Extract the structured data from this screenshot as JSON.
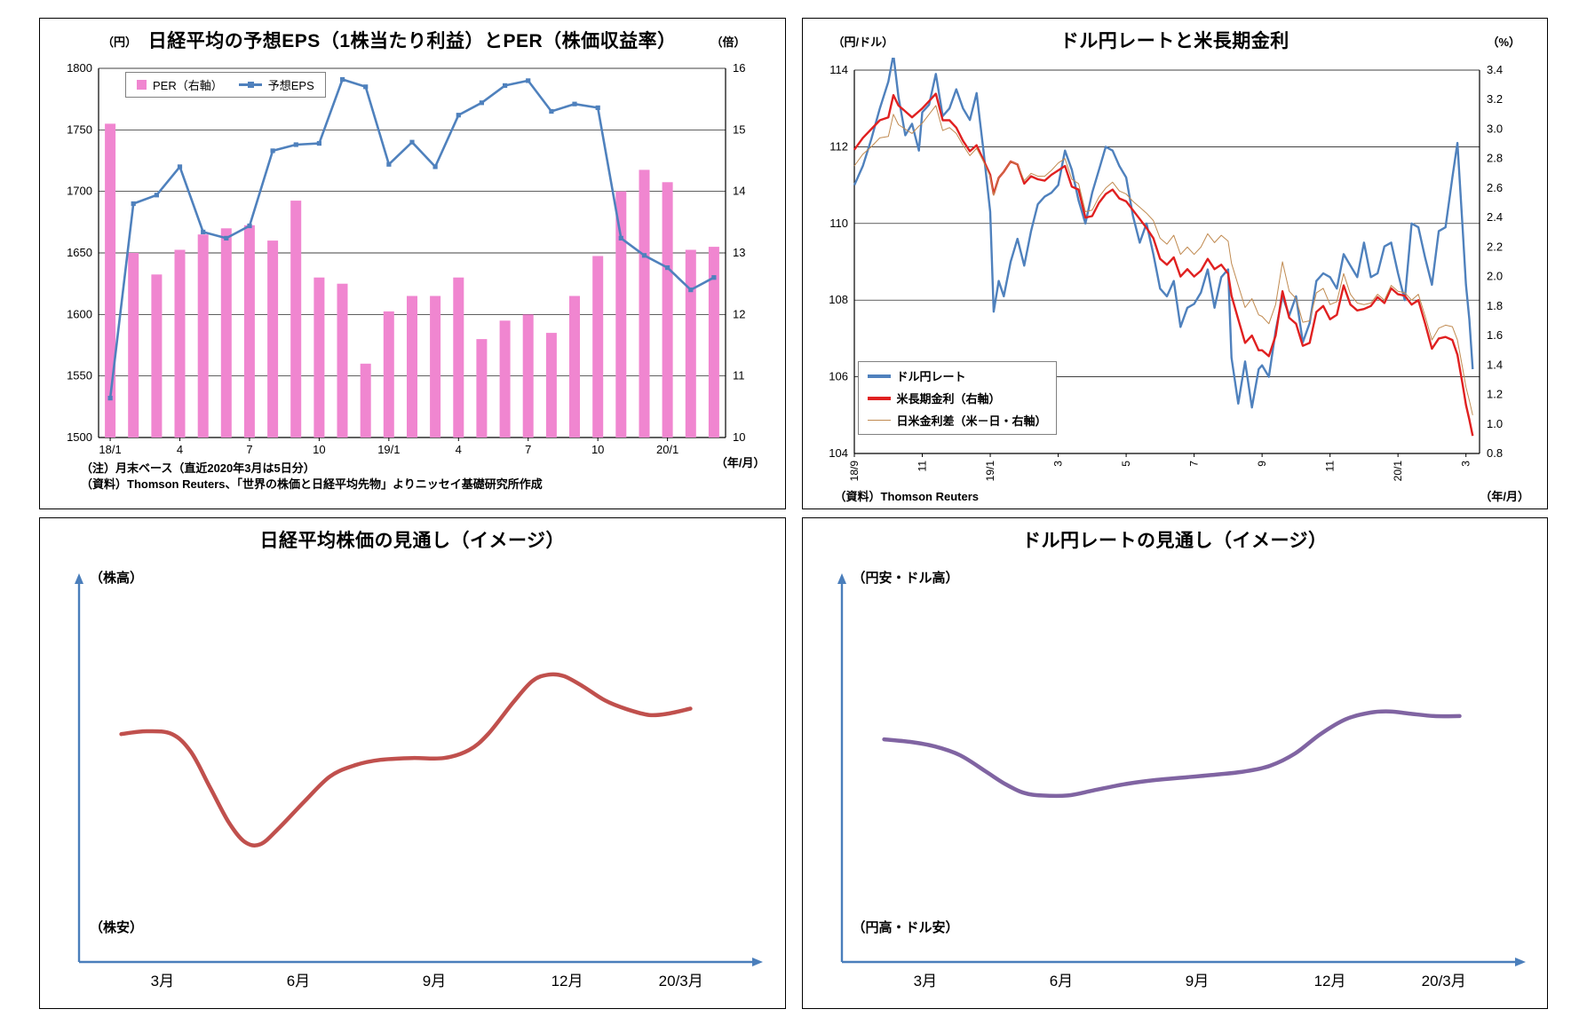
{
  "chart_data": [
    {
      "id": "nikkei-eps-per",
      "type": "bar",
      "title": "日経平均の予想EPS（1株当たり利益）とPER（株価収益率）",
      "left_axis": {
        "unit": "（円）",
        "min": 1500,
        "max": 1800,
        "step": 50
      },
      "right_axis": {
        "unit": "（倍）",
        "min": 10,
        "max": 16,
        "step": 1
      },
      "x_axis": {
        "unit": "（年/月）",
        "tick_labels": [
          "18/1",
          "4",
          "7",
          "10",
          "19/1",
          "4",
          "7",
          "10",
          "20/1"
        ],
        "tick_indices": [
          0,
          3,
          6,
          9,
          12,
          15,
          18,
          21,
          24
        ]
      },
      "categories": [
        "18/1",
        "18/2",
        "18/3",
        "18/4",
        "18/5",
        "18/6",
        "18/7",
        "18/8",
        "18/9",
        "18/10",
        "18/11",
        "18/12",
        "19/1",
        "19/2",
        "19/3",
        "19/4",
        "19/5",
        "19/6",
        "19/7",
        "19/8",
        "19/9",
        "19/10",
        "19/11",
        "19/12",
        "20/1",
        "20/2",
        "20/3"
      ],
      "series": [
        {
          "name": "PER（右軸）",
          "type": "bar",
          "axis": "right",
          "color": "#f086d0",
          "values": [
            15.1,
            13.0,
            12.65,
            13.05,
            13.3,
            13.4,
            13.45,
            13.2,
            13.85,
            12.6,
            12.5,
            11.2,
            12.05,
            12.3,
            12.3,
            12.6,
            11.6,
            11.9,
            12.0,
            11.7,
            12.3,
            12.95,
            14.0,
            14.35,
            14.15,
            13.05,
            13.1
          ]
        },
        {
          "name": "予想EPS",
          "type": "line",
          "axis": "left",
          "color": "#4f81bd",
          "marker": true,
          "values": [
            1532,
            1690,
            1697,
            1720,
            1667,
            1662,
            1672,
            1733,
            1738,
            1739,
            1791,
            1785,
            1722,
            1740,
            1720,
            1762,
            1772,
            1786,
            1790,
            1765,
            1771,
            1768,
            1662,
            1648,
            1638,
            1620,
            1630
          ]
        }
      ],
      "notes": [
        "（注）月末ベース（直近2020年3月は5日分）",
        "（資料）Thomson Reuters、「世界の株価と日経平均先物」よりニッセイ基礎研究所作成"
      ]
    },
    {
      "id": "usdjpy-rates",
      "type": "line",
      "title": "ドル円レートと米長期金利",
      "left_axis": {
        "unit": "（円/ドル）",
        "min": 104,
        "max": 114,
        "step": 2
      },
      "right_axis": {
        "unit": "（%）",
        "min": 0.8,
        "max": 3.4,
        "step": 0.2
      },
      "x_axis": {
        "unit": "（年/月）",
        "min": 0,
        "max": 18.4,
        "tick_labels": [
          "18/9",
          "11",
          "19/1",
          "3",
          "5",
          "7",
          "9",
          "11",
          "20/1",
          "3"
        ],
        "tick_positions": [
          0,
          2,
          4,
          6,
          8,
          10,
          12,
          14,
          16,
          18
        ]
      },
      "source": "（資料）Thomson Reuters",
      "x": [
        0,
        0.25,
        0.5,
        0.75,
        1.0,
        1.15,
        1.3,
        1.5,
        1.7,
        1.9,
        2.0,
        2.2,
        2.4,
        2.6,
        2.8,
        3.0,
        3.2,
        3.4,
        3.6,
        3.8,
        4.0,
        4.1,
        4.25,
        4.4,
        4.6,
        4.8,
        5.0,
        5.2,
        5.4,
        5.6,
        5.8,
        6.0,
        6.2,
        6.4,
        6.6,
        6.8,
        7.0,
        7.2,
        7.4,
        7.6,
        7.8,
        8.0,
        8.2,
        8.4,
        8.6,
        8.8,
        9.0,
        9.2,
        9.4,
        9.6,
        9.8,
        10.0,
        10.2,
        10.4,
        10.6,
        10.8,
        11.0,
        11.1,
        11.3,
        11.5,
        11.7,
        11.9,
        12.0,
        12.2,
        12.4,
        12.6,
        12.8,
        13.0,
        13.2,
        13.4,
        13.6,
        13.8,
        14.0,
        14.2,
        14.4,
        14.6,
        14.8,
        15.0,
        15.2,
        15.4,
        15.6,
        15.8,
        16.0,
        16.2,
        16.4,
        16.6,
        16.8,
        17.0,
        17.2,
        17.4,
        17.6,
        17.75,
        17.9,
        18.0,
        18.1,
        18.2
      ],
      "series": [
        {
          "name": "ドル円レート",
          "axis": "left",
          "color": "#4f81bd",
          "width": 2.4,
          "values": [
            111.0,
            111.5,
            112.2,
            113.0,
            113.7,
            114.4,
            113.3,
            112.3,
            112.6,
            111.9,
            112.9,
            113.1,
            113.9,
            112.8,
            113.0,
            113.5,
            113.0,
            112.7,
            113.4,
            111.9,
            110.3,
            107.7,
            108.5,
            108.1,
            109.0,
            109.6,
            108.9,
            109.8,
            110.5,
            110.7,
            110.8,
            111.0,
            111.9,
            111.4,
            110.6,
            110.0,
            110.8,
            111.4,
            112.0,
            111.9,
            111.5,
            111.2,
            110.2,
            109.5,
            110.0,
            109.2,
            108.3,
            108.1,
            108.5,
            107.3,
            107.8,
            107.9,
            108.2,
            108.8,
            107.8,
            108.6,
            108.8,
            106.5,
            105.3,
            106.4,
            105.2,
            106.2,
            106.3,
            106.0,
            107.2,
            108.1,
            107.6,
            108.1,
            106.9,
            107.4,
            108.5,
            108.7,
            108.6,
            108.3,
            109.2,
            108.9,
            108.6,
            109.5,
            108.6,
            108.7,
            109.4,
            109.5,
            108.7,
            108.0,
            110.0,
            109.9,
            109.1,
            108.4,
            109.8,
            109.9,
            111.2,
            112.1,
            109.9,
            108.4,
            107.5,
            106.2
          ]
        },
        {
          "name": "米長期金利（右軸）",
          "axis": "right",
          "color": "#e02020",
          "width": 2.4,
          "values": [
            2.86,
            2.94,
            3.0,
            3.06,
            3.08,
            3.23,
            3.16,
            3.12,
            3.08,
            3.12,
            3.14,
            3.19,
            3.24,
            3.06,
            3.06,
            3.01,
            2.92,
            2.85,
            2.89,
            2.79,
            2.69,
            2.56,
            2.67,
            2.71,
            2.78,
            2.76,
            2.63,
            2.68,
            2.66,
            2.65,
            2.69,
            2.72,
            2.75,
            2.61,
            2.59,
            2.4,
            2.41,
            2.5,
            2.56,
            2.59,
            2.53,
            2.51,
            2.45,
            2.39,
            2.33,
            2.26,
            2.12,
            2.08,
            2.13,
            2.0,
            2.05,
            2.0,
            2.04,
            2.12,
            2.05,
            2.08,
            2.02,
            1.87,
            1.71,
            1.55,
            1.6,
            1.5,
            1.5,
            1.46,
            1.6,
            1.9,
            1.72,
            1.68,
            1.53,
            1.55,
            1.76,
            1.8,
            1.71,
            1.74,
            1.94,
            1.81,
            1.77,
            1.78,
            1.8,
            1.86,
            1.82,
            1.92,
            1.88,
            1.87,
            1.81,
            1.84,
            1.68,
            1.51,
            1.58,
            1.59,
            1.57,
            1.47,
            1.27,
            1.13,
            1.03,
            0.92
          ]
        },
        {
          "name": "日米金利差（米－日・右軸）",
          "axis": "right",
          "color": "#c08a50",
          "width": 1,
          "values": [
            2.75,
            2.83,
            2.88,
            2.94,
            2.95,
            3.1,
            3.03,
            3.0,
            2.97,
            3.02,
            3.04,
            3.1,
            3.16,
            2.99,
            3.01,
            2.97,
            2.89,
            2.82,
            2.87,
            2.78,
            2.68,
            2.55,
            2.67,
            2.71,
            2.78,
            2.76,
            2.65,
            2.7,
            2.68,
            2.68,
            2.72,
            2.77,
            2.8,
            2.66,
            2.63,
            2.44,
            2.45,
            2.54,
            2.6,
            2.64,
            2.58,
            2.56,
            2.51,
            2.47,
            2.43,
            2.38,
            2.26,
            2.22,
            2.28,
            2.15,
            2.2,
            2.15,
            2.2,
            2.29,
            2.23,
            2.28,
            2.24,
            2.09,
            1.94,
            1.79,
            1.85,
            1.74,
            1.73,
            1.68,
            1.81,
            2.1,
            1.9,
            1.85,
            1.69,
            1.7,
            1.89,
            1.92,
            1.81,
            1.83,
            2.02,
            1.88,
            1.82,
            1.81,
            1.82,
            1.88,
            1.84,
            1.94,
            1.9,
            1.89,
            1.84,
            1.88,
            1.73,
            1.57,
            1.65,
            1.67,
            1.66,
            1.57,
            1.38,
            1.25,
            1.16,
            1.06
          ]
        }
      ]
    },
    {
      "id": "nikkei-outlook",
      "type": "line",
      "title": "日経平均株価の見通し（イメージ）",
      "y_top_label": "（株高）",
      "y_bottom_label": "（株安）",
      "x_tick_labels": [
        "3月",
        "6月",
        "9月",
        "12月",
        "20/3月"
      ],
      "x_tick_positions": [
        11.5,
        33,
        54.5,
        75.5,
        93.5
      ],
      "curve_color": "#c0504d",
      "axis_color": "#4a7ebb",
      "points": [
        [
          5,
          42
        ],
        [
          9,
          41.2
        ],
        [
          13,
          42
        ],
        [
          16,
          47
        ],
        [
          19,
          57
        ],
        [
          22,
          67
        ],
        [
          24.5,
          72.5
        ],
        [
          27,
          73.2
        ],
        [
          30,
          68.5
        ],
        [
          34,
          61
        ],
        [
          38,
          54
        ],
        [
          42,
          50.8
        ],
        [
          46,
          49.3
        ],
        [
          51,
          48.8
        ],
        [
          56,
          48.8
        ],
        [
          60,
          46.5
        ],
        [
          63,
          42
        ],
        [
          67,
          33
        ],
        [
          70,
          27
        ],
        [
          72.5,
          25.2
        ],
        [
          75,
          25.6
        ],
        [
          78,
          28.5
        ],
        [
          81.5,
          32.5
        ],
        [
          85,
          35
        ],
        [
          88.5,
          36.6
        ],
        [
          91.5,
          36.2
        ],
        [
          95,
          34.8
        ]
      ]
    },
    {
      "id": "usdjpy-outlook",
      "type": "line",
      "title": "ドル円レートの見通し（イメージ）",
      "y_top_label": "（円安・ドル高）",
      "y_bottom_label": "（円高・ドル安）",
      "x_tick_labels": [
        "3月",
        "6月",
        "9月",
        "12月",
        "20/3月"
      ],
      "x_tick_positions": [
        11.5,
        33,
        54.5,
        75.5,
        93.5
      ],
      "curve_color": "#8064a2",
      "axis_color": "#4a7ebb",
      "points": [
        [
          5,
          43.5
        ],
        [
          9,
          44.2
        ],
        [
          13,
          45.5
        ],
        [
          17,
          48
        ],
        [
          21,
          52.5
        ],
        [
          24,
          56
        ],
        [
          27,
          58.6
        ],
        [
          30,
          59.4
        ],
        [
          34,
          59.4
        ],
        [
          38,
          58
        ],
        [
          43,
          56.2
        ],
        [
          48,
          55
        ],
        [
          53,
          54.2
        ],
        [
          58,
          53.4
        ],
        [
          62,
          52.6
        ],
        [
          66,
          51
        ],
        [
          70,
          47.5
        ],
        [
          74,
          42
        ],
        [
          78,
          37.8
        ],
        [
          82,
          35.9
        ],
        [
          85,
          35.6
        ],
        [
          88,
          36.2
        ],
        [
          92,
          36.9
        ],
        [
          96,
          36.9
        ]
      ]
    }
  ]
}
